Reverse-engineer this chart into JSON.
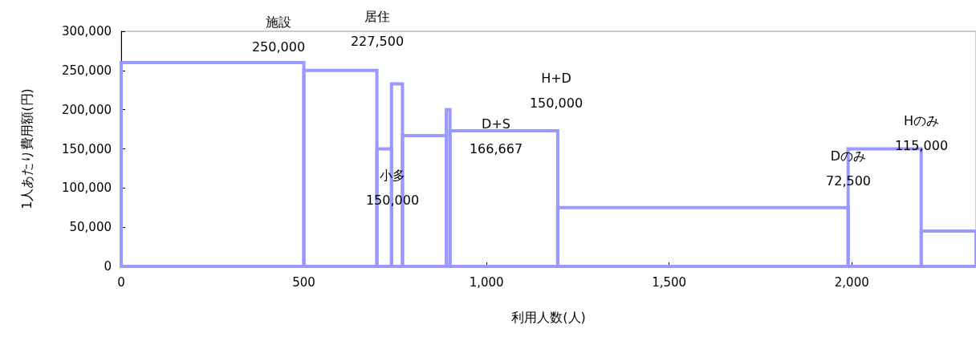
{
  "chart_data": {
    "type": "histogram",
    "xlabel": "利用人数(人)",
    "ylabel": "1人あたり費用額(円)",
    "bins": [
      0,
      500,
      700,
      740,
      770,
      890,
      900,
      1195,
      1990,
      2190,
      2340
    ],
    "values": [
      260000,
      250000,
      150000,
      233000,
      167000,
      200000,
      173000,
      75000,
      150000,
      45000
    ],
    "color": "#9999ff",
    "xlim": [
      0,
      2340
    ],
    "xticks": [
      0,
      500,
      {
        "value": 1000,
        "label": "1,000"
      },
      {
        "value": 1500,
        "label": "1,500"
      },
      {
        "value": 2000,
        "label": "2,000"
      }
    ],
    "ylim": [
      0,
      300000
    ],
    "yticks": [
      0,
      {
        "value": 50000,
        "label": "50,000"
      },
      {
        "value": 100000,
        "label": "100,000"
      },
      {
        "value": 150000,
        "label": "150,000"
      },
      {
        "value": 200000,
        "label": "200,000"
      },
      {
        "value": 250000,
        "label": "250,000"
      },
      {
        "value": 300000,
        "label": "300,000"
      }
    ],
    "annotations": [
      "施設\n250,000",
      "居住\n227,500",
      "小多\n150,000",
      "D+S\n166,667",
      "H+D\n150,000",
      "Dのみ\n72,500",
      "Hのみ\n115,000"
    ]
  }
}
